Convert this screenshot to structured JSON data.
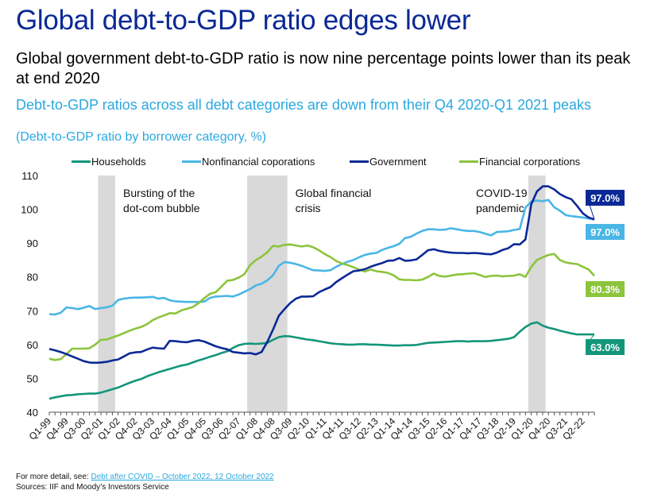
{
  "title": "Global debt-to-GDP ratio edges lower",
  "subtitle": "Global government debt-to-GDP ratio is now nine percentage points lower than its peak at end 2020",
  "footer": {
    "more_detail_prefix": "For more detail, see: ",
    "link_text": "Debt after COVID – October 2022, 12 October 2022",
    "sources": "Sources: IIF and Moody’s Investors Service"
  },
  "colors": {
    "households": "#12967a",
    "nonfinancial": "#49b6e6",
    "government": "#0a2896",
    "financial": "#8cc43c",
    "band": "#d9d9d9"
  },
  "chart_data": {
    "type": "line",
    "title": "Debt-to-GDP ratios across all debt categories are down from their Q4 2020-Q1 2021 peaks",
    "subtitle": "(Debt-to-GDP ratio by borrower category, %)",
    "xlabel": "",
    "ylabel": "",
    "ylim": [
      40,
      110
    ],
    "yticks": [
      40,
      50,
      60,
      70,
      80,
      90,
      100,
      110
    ],
    "grid": false,
    "legend_position": "top",
    "x_start": "Q1-99",
    "x_end": "Q4-22",
    "xtick_labels": [
      "Q1-99",
      "Q4-99",
      "Q3-00",
      "Q2-01",
      "Q1-02",
      "Q4-02",
      "Q3-03",
      "Q2-04",
      "Q1-05",
      "Q4-05",
      "Q3-06",
      "Q2-07",
      "Q1-08",
      "Q4-08",
      "Q3-09",
      "Q2-10",
      "Q1-11",
      "Q4-11",
      "Q3-12",
      "Q2-13",
      "Q1-14",
      "Q4-14",
      "Q3-15",
      "Q2-16",
      "Q1-17",
      "Q4-17",
      "Q3-18",
      "Q2-19",
      "Q1-20",
      "Q4-20",
      "Q3-21",
      "Q2-22"
    ],
    "xtick_step_quarters": 3,
    "annotations": [
      {
        "text_lines": [
          "Bursting of the",
          "dot-com bubble"
        ],
        "band_start": "Q2-01",
        "band_end": "Q4-01"
      },
      {
        "text_lines": [
          "Global financial",
          "crisis"
        ],
        "band_start": "Q4-07",
        "band_end": "Q2-09"
      },
      {
        "text_lines": [
          "COVID-19",
          "pandemic"
        ],
        "band_start": "Q1-20",
        "band_end": "Q3-20"
      }
    ],
    "series": [
      {
        "key": "households",
        "name": "Households",
        "end_label": "63.0%",
        "values": [
          44.0,
          44.4,
          44.7,
          45.0,
          45.1,
          45.3,
          45.4,
          45.5,
          45.5,
          45.8,
          46.3,
          46.8,
          47.3,
          48.0,
          48.7,
          49.3,
          49.8,
          50.6,
          51.2,
          51.8,
          52.3,
          52.8,
          53.3,
          53.8,
          54.1,
          54.7,
          55.3,
          55.8,
          56.4,
          56.9,
          57.5,
          58.0,
          59.0,
          59.8,
          60.2,
          60.3,
          60.2,
          60.3,
          60.5,
          61.4,
          62.2,
          62.5,
          62.4,
          62.1,
          61.8,
          61.5,
          61.3,
          61.0,
          60.7,
          60.4,
          60.2,
          60.1,
          60.0,
          60.0,
          60.1,
          60.1,
          60.0,
          60.0,
          59.9,
          59.8,
          59.7,
          59.7,
          59.8,
          59.8,
          59.9,
          60.2,
          60.5,
          60.6,
          60.7,
          60.8,
          60.9,
          61.0,
          61.0,
          60.9,
          61.0,
          61.0,
          61.0,
          61.1,
          61.3,
          61.5,
          61.7,
          62.2,
          63.8,
          65.2,
          66.2,
          66.6,
          65.6,
          65.0,
          64.6,
          64.1,
          63.7,
          63.3,
          63.0,
          63.0,
          63.0,
          63.0
        ]
      },
      {
        "key": "nonfinancial",
        "name": "Nonfinancial coporations",
        "end_label": "97.0%",
        "values": [
          69.0,
          68.9,
          69.4,
          71.0,
          70.8,
          70.5,
          70.9,
          71.4,
          70.5,
          70.8,
          71.0,
          71.5,
          73.2,
          73.6,
          73.8,
          73.9,
          73.9,
          74.0,
          74.1,
          73.6,
          73.8,
          73.1,
          72.8,
          72.7,
          72.6,
          72.6,
          72.6,
          72.7,
          73.8,
          74.2,
          74.3,
          74.4,
          74.2,
          74.8,
          75.6,
          76.4,
          77.5,
          78.0,
          79.0,
          80.5,
          83.3,
          84.4,
          84.2,
          83.8,
          83.3,
          82.6,
          82.0,
          81.9,
          81.8,
          82.0,
          83.0,
          83.8,
          84.5,
          85.0,
          85.8,
          86.5,
          86.9,
          87.1,
          88.0,
          88.6,
          89.1,
          89.8,
          91.5,
          91.9,
          92.8,
          93.6,
          94.1,
          94.1,
          93.9,
          94.0,
          94.4,
          94.1,
          93.8,
          93.6,
          93.6,
          93.3,
          92.8,
          92.3,
          93.3,
          93.4,
          93.5,
          93.9,
          94.2,
          100.5,
          102.3,
          102.6,
          102.4,
          102.8,
          100.6,
          99.6,
          98.3,
          98.0,
          97.8,
          97.6,
          97.3,
          97.0
        ]
      },
      {
        "key": "government",
        "name": "Government",
        "end_label": "97.0%",
        "values": [
          58.7,
          58.3,
          57.8,
          57.2,
          56.5,
          55.8,
          55.1,
          54.7,
          54.6,
          54.7,
          54.9,
          55.3,
          55.6,
          56.5,
          57.4,
          57.7,
          57.8,
          58.5,
          59.1,
          58.9,
          58.8,
          61.1,
          61.0,
          60.8,
          60.7,
          61.1,
          61.3,
          60.9,
          60.2,
          59.5,
          59.0,
          58.6,
          57.8,
          57.6,
          57.4,
          57.5,
          57.1,
          57.8,
          60.8,
          64.4,
          68.5,
          70.5,
          72.3,
          73.6,
          74.2,
          74.2,
          74.3,
          75.5,
          76.3,
          77.0,
          78.5,
          79.6,
          80.7,
          81.7,
          81.9,
          82.3,
          83.0,
          83.6,
          84.1,
          84.8,
          84.9,
          85.6,
          84.8,
          84.9,
          85.2,
          86.5,
          87.9,
          88.2,
          87.7,
          87.4,
          87.2,
          87.1,
          87.1,
          87.0,
          87.1,
          87.0,
          86.8,
          86.7,
          87.2,
          88.0,
          88.5,
          89.7,
          89.6,
          91.1,
          101.5,
          105.3,
          106.8,
          106.8,
          105.9,
          104.5,
          103.6,
          103.0,
          101.0,
          98.8,
          97.6,
          97.0
        ]
      },
      {
        "key": "financial",
        "name": "Financial corporations",
        "end_label": "80.3%",
        "values": [
          55.8,
          55.4,
          55.7,
          57.2,
          58.8,
          58.8,
          58.8,
          58.9,
          60.0,
          61.4,
          61.5,
          62.1,
          62.7,
          63.4,
          64.1,
          64.7,
          65.2,
          66.0,
          67.2,
          68.0,
          68.6,
          69.3,
          69.2,
          70.1,
          70.6,
          71.1,
          72.2,
          73.7,
          75.0,
          75.5,
          77.1,
          78.9,
          79.1,
          79.8,
          80.8,
          83.5,
          85.0,
          86.0,
          87.3,
          89.2,
          89.0,
          89.5,
          89.6,
          89.3,
          89.0,
          89.3,
          88.8,
          87.9,
          86.8,
          85.9,
          84.7,
          84.0,
          83.5,
          82.9,
          82.2,
          81.6,
          82.2,
          81.7,
          81.5,
          81.2,
          80.5,
          79.3,
          79.1,
          79.1,
          79.0,
          79.2,
          80.0,
          81.0,
          80.3,
          80.1,
          80.4,
          80.7,
          80.8,
          81.0,
          81.1,
          80.6,
          80.0,
          80.3,
          80.4,
          80.2,
          80.3,
          80.4,
          80.8,
          80.0,
          83.0,
          85.0,
          85.8,
          86.5,
          86.8,
          85.0,
          84.3,
          84.0,
          83.8,
          83.0,
          82.2,
          80.3
        ]
      }
    ]
  }
}
